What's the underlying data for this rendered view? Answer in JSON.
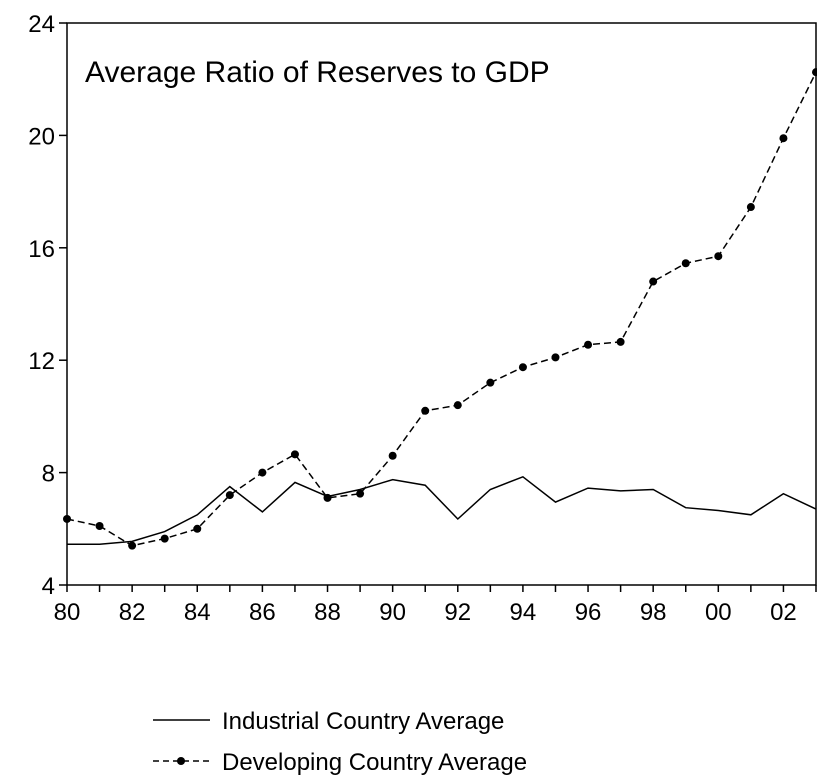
{
  "chart_data": {
    "type": "line",
    "title": "Average Ratio of Reserves to GDP",
    "xlabel": "",
    "ylabel": "",
    "x": [
      1980,
      1981,
      1982,
      1983,
      1984,
      1985,
      1986,
      1987,
      1988,
      1989,
      1990,
      1991,
      1992,
      1993,
      1994,
      1995,
      1996,
      1997,
      1998,
      1999,
      2000,
      2001,
      2002,
      2003
    ],
    "x_tick_labels": [
      "80",
      "82",
      "84",
      "86",
      "88",
      "90",
      "92",
      "94",
      "96",
      "98",
      "00",
      "02"
    ],
    "x_tick_values": [
      1980,
      1982,
      1984,
      1986,
      1988,
      1990,
      1992,
      1994,
      1996,
      1998,
      2000,
      2002
    ],
    "y_ticks": [
      "4",
      "8",
      "12",
      "16",
      "20",
      "24"
    ],
    "y_tick_values": [
      4,
      8,
      12,
      16,
      20,
      24
    ],
    "ylim": [
      4,
      24
    ],
    "xlim": [
      1980,
      2003
    ],
    "grid": false,
    "legend_position": "bottom",
    "series": [
      {
        "name": "Industrial Country Average",
        "style": "solid",
        "values": [
          5.45,
          5.45,
          5.55,
          5.9,
          6.5,
          7.5,
          6.6,
          7.65,
          7.15,
          7.4,
          7.75,
          7.55,
          6.35,
          7.4,
          7.85,
          6.95,
          7.45,
          7.35,
          7.4,
          6.75,
          6.65,
          6.5,
          7.25,
          6.7
        ]
      },
      {
        "name": "Developing Country Average",
        "style": "dashed-dots",
        "values": [
          6.35,
          6.1,
          5.4,
          5.65,
          6.0,
          7.2,
          8.0,
          8.65,
          7.1,
          7.25,
          8.6,
          10.2,
          10.4,
          11.2,
          11.75,
          12.1,
          12.55,
          12.65,
          14.8,
          15.45,
          15.7,
          17.45,
          19.9,
          22.25
        ]
      }
    ]
  }
}
